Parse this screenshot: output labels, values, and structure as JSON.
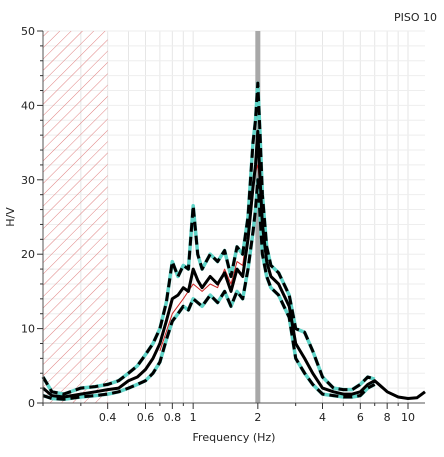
{
  "chart_data": {
    "type": "line",
    "title": "PISO 10",
    "xlabel": "Frequency (Hz)",
    "ylabel": "H/V",
    "x_scale": "log",
    "xlim": [
      0.2,
      12
    ],
    "ylim": [
      0,
      50
    ],
    "x_tick_labels": [
      "0.4",
      "0.6",
      "0.8",
      "1",
      "2",
      "4",
      "6",
      "8",
      "10"
    ],
    "x_ticks": [
      0.4,
      0.6,
      0.8,
      1,
      2,
      4,
      6,
      8,
      10
    ],
    "y_ticks": [
      0,
      10,
      20,
      30,
      40,
      50
    ],
    "grid": true,
    "peak_frequency_marker": 2.0,
    "excluded_band": [
      0.2,
      0.4
    ],
    "colors": {
      "mean": "#000000",
      "bounds": "#000000",
      "bounds_highlight": "#5fd4c8",
      "windows": "#cc2222",
      "peak_marker": "#a8a8a8",
      "hatch": "#e08080"
    },
    "series": [
      {
        "role": "mean",
        "style": "solid",
        "x": [
          0.2,
          0.22,
          0.25,
          0.3,
          0.35,
          0.4,
          0.45,
          0.5,
          0.55,
          0.6,
          0.65,
          0.7,
          0.75,
          0.8,
          0.85,
          0.9,
          0.95,
          1.0,
          1.05,
          1.1,
          1.2,
          1.3,
          1.4,
          1.5,
          1.6,
          1.7,
          1.8,
          1.9,
          1.95,
          2.0,
          2.05,
          2.1,
          2.2,
          2.3,
          2.5,
          2.8,
          3.0,
          3.3,
          3.6,
          4.0,
          4.5,
          5.0,
          5.5,
          6.0,
          6.5,
          7.0,
          8.0,
          9.0,
          10.0,
          11.0,
          12.0
        ],
        "y": [
          2.0,
          1.0,
          0.8,
          1.2,
          1.5,
          1.8,
          2.0,
          3.0,
          3.5,
          4.5,
          6.0,
          8.0,
          11.0,
          14.0,
          14.5,
          15.5,
          15.0,
          18.0,
          16.5,
          15.5,
          17.0,
          16.0,
          17.5,
          15.0,
          18.0,
          17.0,
          22.0,
          29.0,
          32.0,
          36.5,
          30.0,
          24.0,
          19.0,
          17.0,
          16.0,
          13.0,
          8.0,
          6.0,
          4.0,
          2.0,
          1.5,
          1.2,
          1.2,
          1.5,
          2.5,
          3.0,
          1.5,
          0.8,
          0.6,
          0.7,
          1.5
        ]
      },
      {
        "role": "upper",
        "style": "dashed",
        "x": [
          0.2,
          0.22,
          0.25,
          0.3,
          0.35,
          0.4,
          0.45,
          0.5,
          0.55,
          0.6,
          0.65,
          0.7,
          0.75,
          0.8,
          0.85,
          0.9,
          0.95,
          1.0,
          1.05,
          1.1,
          1.2,
          1.3,
          1.4,
          1.5,
          1.6,
          1.7,
          1.8,
          1.9,
          1.95,
          2.0,
          2.05,
          2.1,
          2.2,
          2.3,
          2.5,
          2.8,
          3.0,
          3.3,
          3.6,
          4.0,
          4.5,
          5.0,
          5.5,
          6.0,
          6.5,
          7.0
        ],
        "y": [
          3.5,
          1.5,
          1.2,
          2.0,
          2.2,
          2.5,
          3.0,
          4.0,
          5.0,
          6.5,
          8.0,
          10.0,
          13.5,
          19.0,
          17.0,
          18.5,
          18.0,
          26.5,
          20.0,
          18.0,
          20.0,
          19.0,
          20.5,
          17.0,
          21.0,
          20.0,
          25.0,
          35.0,
          38.0,
          43.0,
          36.0,
          28.0,
          21.0,
          18.5,
          17.5,
          14.5,
          10.0,
          9.5,
          7.0,
          3.5,
          2.0,
          1.8,
          1.8,
          2.5,
          3.5,
          3.2
        ]
      },
      {
        "role": "lower",
        "style": "dashed",
        "x": [
          0.2,
          0.22,
          0.25,
          0.3,
          0.35,
          0.4,
          0.45,
          0.5,
          0.55,
          0.6,
          0.65,
          0.7,
          0.75,
          0.8,
          0.85,
          0.9,
          0.95,
          1.0,
          1.05,
          1.1,
          1.2,
          1.3,
          1.4,
          1.5,
          1.6,
          1.7,
          1.8,
          1.9,
          1.95,
          2.0,
          2.05,
          2.1,
          2.2,
          2.3,
          2.5,
          2.8,
          3.0,
          3.3,
          3.6,
          4.0,
          4.5,
          5.0,
          5.5,
          6.0,
          6.5,
          7.0
        ],
        "y": [
          1.0,
          0.6,
          0.5,
          0.8,
          1.0,
          1.2,
          1.5,
          2.0,
          2.5,
          3.0,
          4.0,
          5.5,
          8.5,
          11.0,
          12.0,
          13.0,
          12.5,
          14.0,
          13.5,
          13.0,
          14.5,
          13.5,
          15.0,
          13.0,
          15.0,
          14.0,
          18.0,
          23.0,
          26.0,
          30.0,
          25.0,
          20.0,
          17.0,
          15.5,
          14.5,
          11.5,
          6.0,
          4.0,
          2.5,
          1.2,
          1.0,
          0.8,
          0.8,
          1.0,
          2.0,
          2.5
        ]
      },
      {
        "role": "window",
        "style": "thin",
        "x": [
          0.7,
          0.8,
          0.9,
          1.0,
          1.1,
          1.2,
          1.3,
          1.4,
          1.5,
          1.6,
          1.7,
          1.8,
          1.9,
          2.0,
          2.1,
          2.2
        ],
        "y": [
          7.0,
          12.0,
          14.0,
          16.0,
          15.0,
          16.0,
          15.5,
          18.0,
          16.0,
          19.0,
          18.5,
          24.0,
          30.0,
          32.0,
          26.0,
          20.0
        ]
      }
    ]
  }
}
